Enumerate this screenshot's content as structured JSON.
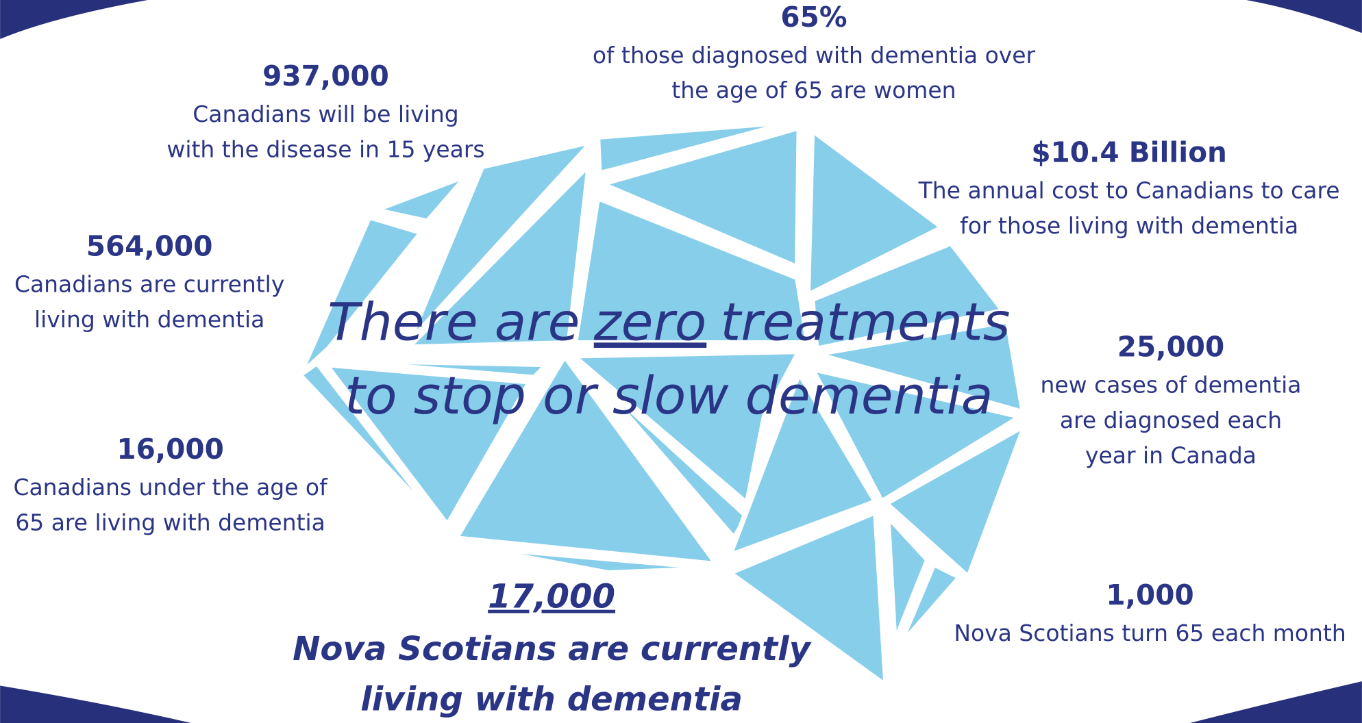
{
  "headline": {
    "start": "There are",
    "emphasis": "zero",
    "end": "treatments",
    "line2": "to stop or slow dementia"
  },
  "stats": [
    {
      "figure": "65%",
      "lines": [
        "of those diagnosed with dementia over",
        "the age of 65 are women"
      ]
    },
    {
      "figure": "937,000",
      "lines": [
        "Canadians will be living",
        "with the disease in 15 years"
      ]
    },
    {
      "figure": "$10.4 Billion",
      "lines": [
        "The annual cost to Canadians to care",
        "for those living with dementia"
      ]
    },
    {
      "figure": "564,000",
      "lines": [
        "Canadians are currently",
        "living with dementia"
      ]
    },
    {
      "figure": "25,000",
      "lines": [
        "new cases of dementia",
        "are diagnosed each",
        "year in Canada"
      ]
    },
    {
      "figure": "16,000",
      "lines": [
        "Canadians under the age of",
        "65 are living with dementia"
      ]
    },
    {
      "figure": "1,000",
      "lines": [
        "Nova Scotians turn 65 each month"
      ]
    }
  ],
  "feature": {
    "figure": "17,000",
    "lines": [
      "Nova Scotians are currently",
      "living with dementia"
    ]
  }
}
